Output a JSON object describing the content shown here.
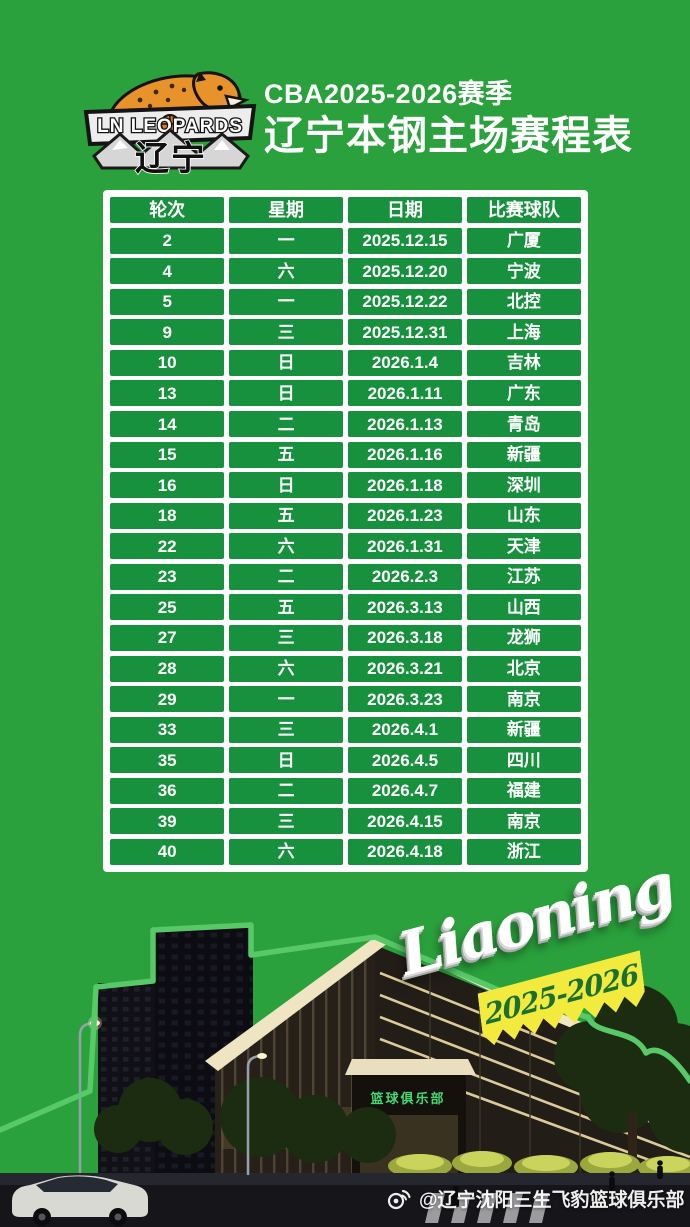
{
  "page": {
    "background_color": "#2aa13c"
  },
  "header": {
    "logo": {
      "team_name_en": "LN LEOPARDS",
      "team_name_cn": "辽宁"
    },
    "title_line1": "CBA2025-2026赛季",
    "title_line2": "辽宁本钢主场赛程表"
  },
  "schedule": {
    "cell_color": "#17913d",
    "columns": [
      "轮次",
      "星期",
      "日期",
      "比赛球队"
    ],
    "rows": [
      [
        "2",
        "一",
        "2025.12.15",
        "广厦"
      ],
      [
        "4",
        "六",
        "2025.12.20",
        "宁波"
      ],
      [
        "5",
        "一",
        "2025.12.22",
        "北控"
      ],
      [
        "9",
        "三",
        "2025.12.31",
        "上海"
      ],
      [
        "10",
        "日",
        "2026.1.4",
        "吉林"
      ],
      [
        "13",
        "日",
        "2026.1.11",
        "广东"
      ],
      [
        "14",
        "二",
        "2026.1.13",
        "青岛"
      ],
      [
        "15",
        "五",
        "2026.1.16",
        "新疆"
      ],
      [
        "16",
        "日",
        "2026.1.18",
        "深圳"
      ],
      [
        "18",
        "五",
        "2026.1.23",
        "山东"
      ],
      [
        "22",
        "六",
        "2026.1.31",
        "天津"
      ],
      [
        "23",
        "二",
        "2026.2.3",
        "江苏"
      ],
      [
        "25",
        "五",
        "2026.3.13",
        "山西"
      ],
      [
        "27",
        "三",
        "2026.3.18",
        "龙狮"
      ],
      [
        "28",
        "六",
        "2026.3.21",
        "北京"
      ],
      [
        "29",
        "一",
        "2026.3.23",
        "南京"
      ],
      [
        "33",
        "三",
        "2026.4.1",
        "新疆"
      ],
      [
        "35",
        "日",
        "2026.4.5",
        "四川"
      ],
      [
        "36",
        "二",
        "2026.4.7",
        "福建"
      ],
      [
        "39",
        "三",
        "2026.4.15",
        "南京"
      ],
      [
        "40",
        "六",
        "2026.4.18",
        "浙江"
      ]
    ]
  },
  "scene": {
    "wordmark": "Liaoning",
    "season_badge": "2025-2026",
    "badge_color": "#f2ea3c",
    "badge_text_color": "#1a7030",
    "entrance_sign": "篮球俱乐部"
  },
  "footer": {
    "watermark": "@辽宁沈阳三生飞豹篮球俱乐部"
  }
}
